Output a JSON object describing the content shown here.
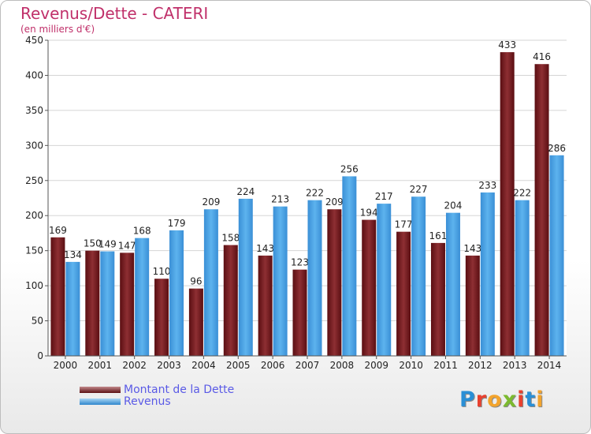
{
  "header": {
    "title": "Revenus/Dette - CATERI",
    "subtitle": "(en milliers d'€)"
  },
  "logo": {
    "text": "Proxiti",
    "letter_colors": [
      "#2a8fd6",
      "#e8412f",
      "#f3a42d",
      "#7cba2f",
      "#e8412f",
      "#2a8fd6",
      "#f3a42d"
    ]
  },
  "chart_data": {
    "type": "bar",
    "title": "Revenus/Dette - CATERI",
    "ylabel": "(en milliers d'€)",
    "xlabel": "",
    "ylim": [
      0,
      450
    ],
    "yticks": [
      0,
      50,
      100,
      150,
      200,
      250,
      300,
      350,
      400,
      450
    ],
    "grid": true,
    "legend_position": "bottom-left",
    "categories": [
      "2000",
      "2001",
      "2002",
      "2003",
      "2004",
      "2005",
      "2006",
      "2007",
      "2008",
      "2009",
      "2010",
      "2011",
      "2012",
      "2013",
      "2014"
    ],
    "series": [
      {
        "name": "Montant de la Dette",
        "color": "#7a1f22",
        "values": [
          169,
          150,
          147,
          110,
          96,
          158,
          143,
          123,
          209,
          194,
          177,
          161,
          143,
          433,
          416
        ],
        "labels": [
          "169",
          "150",
          "147",
          "110",
          "96",
          "158",
          "143",
          "123",
          "209",
          "194",
          "177",
          "161",
          "143",
          "433",
          "416"
        ]
      },
      {
        "name": "Revenus",
        "color": "#4aa3e6",
        "values": [
          134,
          149,
          168,
          179,
          209,
          224,
          213,
          222,
          256,
          217,
          227,
          204,
          233,
          222,
          286
        ],
        "labels": [
          "134",
          "149",
          "168",
          "179",
          "209",
          "224",
          "213",
          "222",
          "256",
          "217",
          "227",
          "204",
          "233",
          "222",
          "286"
        ]
      }
    ]
  }
}
